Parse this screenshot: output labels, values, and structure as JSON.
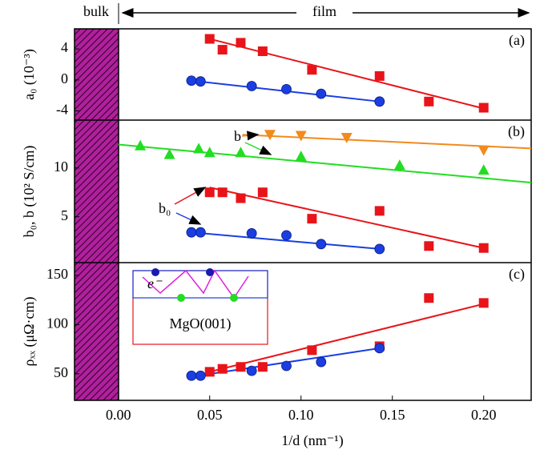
{
  "header": {
    "left": "bulk",
    "right": "film"
  },
  "chart_data": [
    {
      "type": "scatter",
      "panel_label": "(a)",
      "ylabel": "a₀ (10⁻³)",
      "ylim": [
        -5.2,
        6.6
      ],
      "yticks": [
        -4,
        0,
        4
      ],
      "series": [
        {
          "color": "#e8141a",
          "marker": "square",
          "x": [
            0.05,
            0.057,
            0.067,
            0.079,
            0.106,
            0.143,
            0.17,
            0.2
          ],
          "values": [
            5.3,
            3.9,
            4.8,
            3.7,
            1.3,
            0.5,
            -2.8,
            -3.6
          ]
        },
        {
          "color": "#1a3ee0",
          "marker": "circle",
          "x": [
            0.04,
            0.045,
            0.073,
            0.092,
            0.111,
            0.143
          ],
          "values": [
            -0.1,
            -0.2,
            -0.8,
            -1.2,
            -1.8,
            -2.8
          ]
        }
      ],
      "fits": [
        {
          "color": "#e8141a",
          "x": [
            0.05,
            0.2
          ],
          "values": [
            5.3,
            -3.7
          ]
        },
        {
          "color": "#1a3ee0",
          "x": [
            0.04,
            0.143
          ],
          "values": [
            -0.1,
            -2.8
          ]
        }
      ]
    },
    {
      "type": "scatter",
      "panel_label": "(b)",
      "ylabel": "b₀, b (10² S/cm)",
      "ylim": [
        0.3,
        14.9
      ],
      "yticks": [
        5,
        10
      ],
      "annotations": [
        "b",
        "b₀"
      ],
      "series": [
        {
          "color": "#22dd22",
          "marker": "triangle",
          "x": [
            0.012,
            0.028,
            0.044,
            0.05,
            0.067,
            0.1,
            0.154,
            0.2
          ],
          "values": [
            12.3,
            11.4,
            12.0,
            11.6,
            11.6,
            11.2,
            10.3,
            9.8
          ]
        },
        {
          "color": "#f28a1c",
          "marker": "triangle-down",
          "x": [
            0.083,
            0.1,
            0.125,
            0.2
          ],
          "values": [
            13.4,
            13.3,
            13.1,
            11.8
          ]
        },
        {
          "color": "#e8141a",
          "marker": "square",
          "x": [
            0.05,
            0.057,
            0.067,
            0.079,
            0.106,
            0.143,
            0.17,
            0.2
          ],
          "values": [
            7.5,
            7.5,
            6.9,
            7.5,
            4.8,
            5.6,
            2.0,
            1.8
          ]
        },
        {
          "color": "#1a3ee0",
          "marker": "circle",
          "x": [
            0.04,
            0.045,
            0.073,
            0.092,
            0.111,
            0.143
          ],
          "values": [
            3.4,
            3.4,
            3.3,
            3.1,
            2.2,
            1.7
          ]
        }
      ],
      "fits": [
        {
          "color": "#22dd22",
          "x": [
            0.0,
            0.226
          ],
          "values": [
            12.4,
            8.5
          ]
        },
        {
          "color": "#f28a1c",
          "x": [
            0.068,
            0.226
          ],
          "values": [
            13.4,
            12.0
          ]
        },
        {
          "color": "#e8141a",
          "x": [
            0.05,
            0.2
          ],
          "values": [
            8.0,
            1.8
          ]
        },
        {
          "color": "#1a3ee0",
          "x": [
            0.04,
            0.143
          ],
          "values": [
            3.4,
            1.7
          ]
        }
      ]
    },
    {
      "type": "scatter",
      "panel_label": "(c)",
      "ylabel": "ρₓₓ (μΩ·cm)",
      "xlabel": "1/d (nm⁻¹)",
      "inset": {
        "electron": "e⁻",
        "substrate": "MgO(001)"
      },
      "xlim": [
        -0.024,
        0.226
      ],
      "xticks": [
        {
          "value": 0,
          "label": "0.00"
        },
        {
          "value": 0.05,
          "label": "0.05"
        },
        {
          "value": 0.1,
          "label": "0.10"
        },
        {
          "value": 0.15,
          "label": "0.15"
        },
        {
          "value": 0.2,
          "label": "0.20"
        }
      ],
      "ylim": [
        23,
        163
      ],
      "yticks": [
        50,
        100,
        150
      ],
      "series": [
        {
          "color": "#e8141a",
          "marker": "square",
          "x": [
            0.05,
            0.057,
            0.067,
            0.079,
            0.106,
            0.143,
            0.17,
            0.2
          ],
          "values": [
            52,
            55,
            57,
            57,
            74,
            78,
            127,
            122
          ]
        },
        {
          "color": "#1a3ee0",
          "marker": "circle",
          "x": [
            0.04,
            0.045,
            0.073,
            0.092,
            0.111,
            0.143
          ],
          "values": [
            48,
            48,
            53,
            58,
            62,
            76
          ]
        }
      ],
      "fits": [
        {
          "color": "#e8141a",
          "x": [
            0.05,
            0.2
          ],
          "values": [
            52,
            121
          ]
        },
        {
          "color": "#1a3ee0",
          "x": [
            0.04,
            0.143
          ],
          "values": [
            47,
            76
          ]
        }
      ]
    }
  ]
}
